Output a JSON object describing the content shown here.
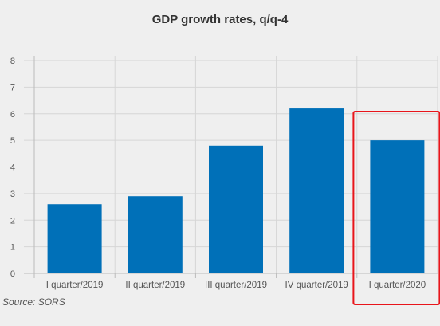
{
  "chart_data": {
    "type": "bar",
    "title": "GDP growth rates, q/q-4",
    "categories": [
      "I quarter/2019",
      "II quarter/2019",
      "III quarter/2019",
      "IV quarter/2019",
      "I quarter/2020"
    ],
    "values": [
      2.6,
      2.9,
      4.8,
      6.2,
      5.0
    ],
    "y_ticks": [
      "0",
      "1",
      "2",
      "3",
      "4",
      "5",
      "6",
      "7",
      "8"
    ],
    "ylim": [
      0,
      8
    ],
    "xlabel": "",
    "ylabel": "",
    "grid": true,
    "bar_color": "#0070b8",
    "highlight_color": "#e8151b",
    "highlighted_category_index": 4
  },
  "source": "Source: SORS"
}
